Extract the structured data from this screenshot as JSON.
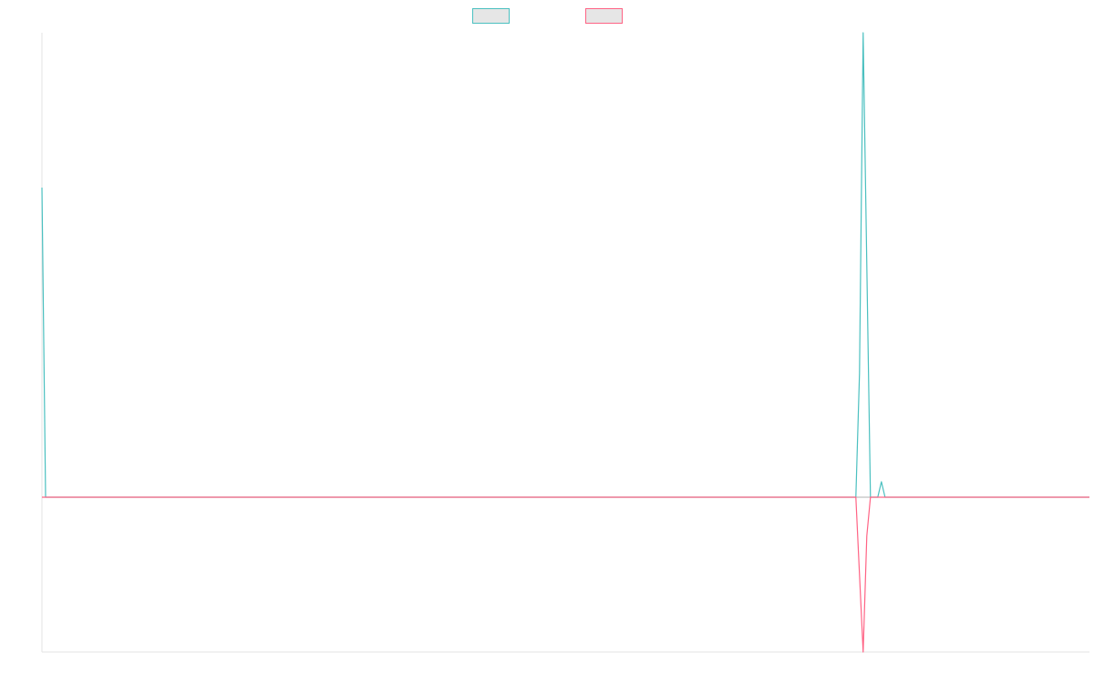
{
  "chart_data": {
    "type": "line",
    "x_count": 288,
    "ylim": [
      -1,
      3
    ],
    "zero_line": true,
    "legend_position": "top-center",
    "series": [
      {
        "color": "#4bc0c0",
        "legend_fill": "#e6e6e6",
        "nonzero": [
          [
            0,
            2
          ],
          [
            224,
            0.8
          ],
          [
            225,
            3
          ],
          [
            226,
            1.5
          ],
          [
            230,
            0.1
          ]
        ]
      },
      {
        "color": "#ff6384",
        "legend_fill": "#e6e6e6",
        "nonzero": [
          [
            224,
            -0.5
          ],
          [
            225,
            -1
          ],
          [
            226,
            -0.25
          ]
        ]
      }
    ]
  }
}
